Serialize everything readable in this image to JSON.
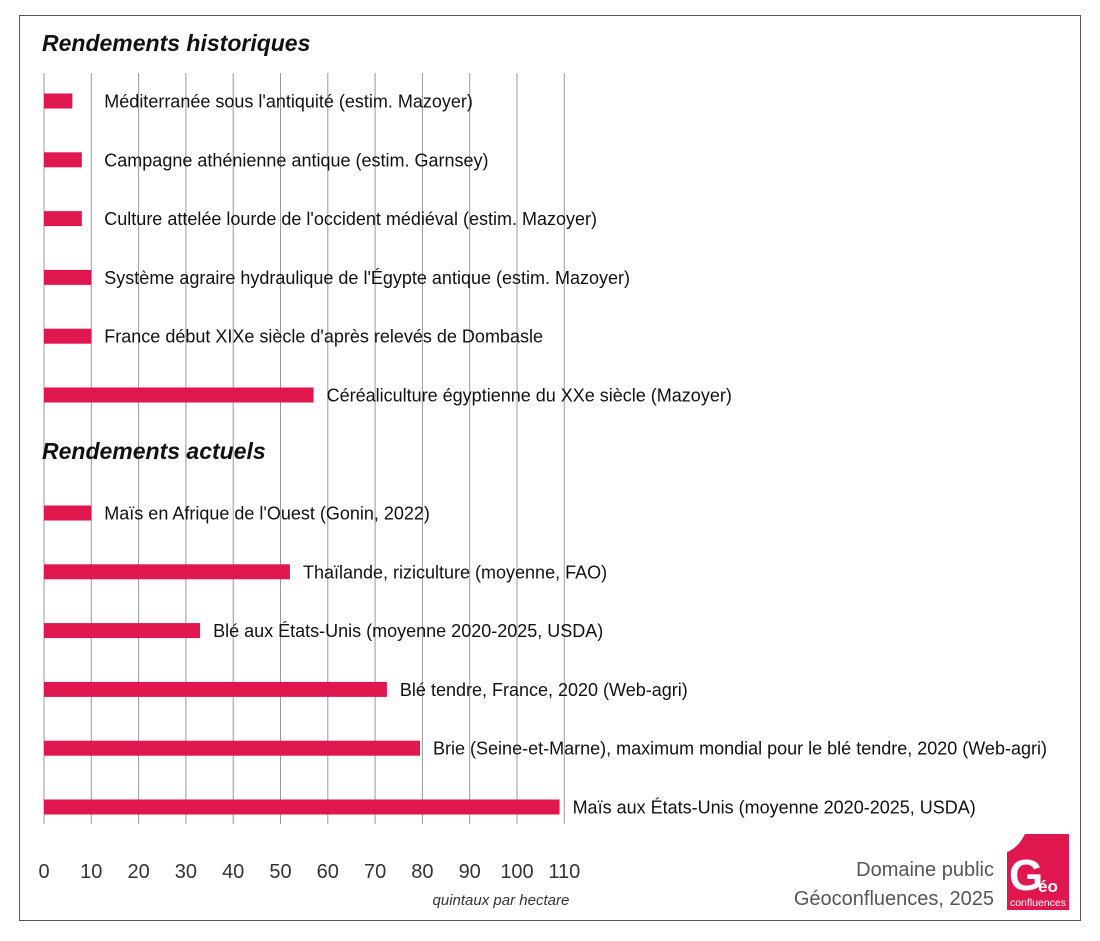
{
  "chart_data": {
    "type": "bar",
    "orientation": "horizontal",
    "xlabel": "quintaux par hectare",
    "xlim": [
      0,
      110
    ],
    "xticks": [
      0,
      10,
      20,
      30,
      40,
      50,
      60,
      70,
      80,
      90,
      100,
      110
    ],
    "grid": true,
    "bar_color": "#e0174f",
    "sections": [
      {
        "title": "Rendements historiques",
        "bars": [
          {
            "label": "Méditerranée sous l'antiquité (estim. Mazoyer)",
            "value": 6
          },
          {
            "label": "Campagne athénienne antique (estim. Garnsey)",
            "value": 8
          },
          {
            "label": "Culture attelée lourde de l'occident médiéval (estim. Mazoyer)",
            "value": 8
          },
          {
            "label": "Système agraire hydraulique de l'Égypte antique (estim. Mazoyer)",
            "value": 10
          },
          {
            "label": "France début XIXe siècle d'après relevés de Dombasle",
            "value": 10
          },
          {
            "label": "Céréaliculture égyptienne du XXe siècle (Mazoyer)",
            "value": 57
          }
        ]
      },
      {
        "title": "Rendements actuels",
        "bars": [
          {
            "label": "Maïs en Afrique de l'Ouest (Gonin, 2022)",
            "value": 10
          },
          {
            "label": "Thaïlande, riziculture (moyenne, FAO)",
            "value": 52
          },
          {
            "label": "Blé aux États-Unis (moyenne 2020-2025, USDA)",
            "value": 33
          },
          {
            "label": "Blé tendre, France, 2020 (Web-agri)",
            "value": 72.5
          },
          {
            "label": "Brie (Seine-et-Marne), maximum mondial pour le blé tendre, 2020 (Web-agri)",
            "value": 79.5
          },
          {
            "label": "Maïs aux États-Unis (moyenne 2020-2025, USDA)",
            "value": 109
          }
        ]
      }
    ]
  },
  "credit": {
    "line1": "Domaine public",
    "line2": "Géoconfluences, 2025"
  },
  "logo": {
    "big": "G",
    "small": "éo",
    "word": "confluences",
    "color": "#e0174f"
  }
}
